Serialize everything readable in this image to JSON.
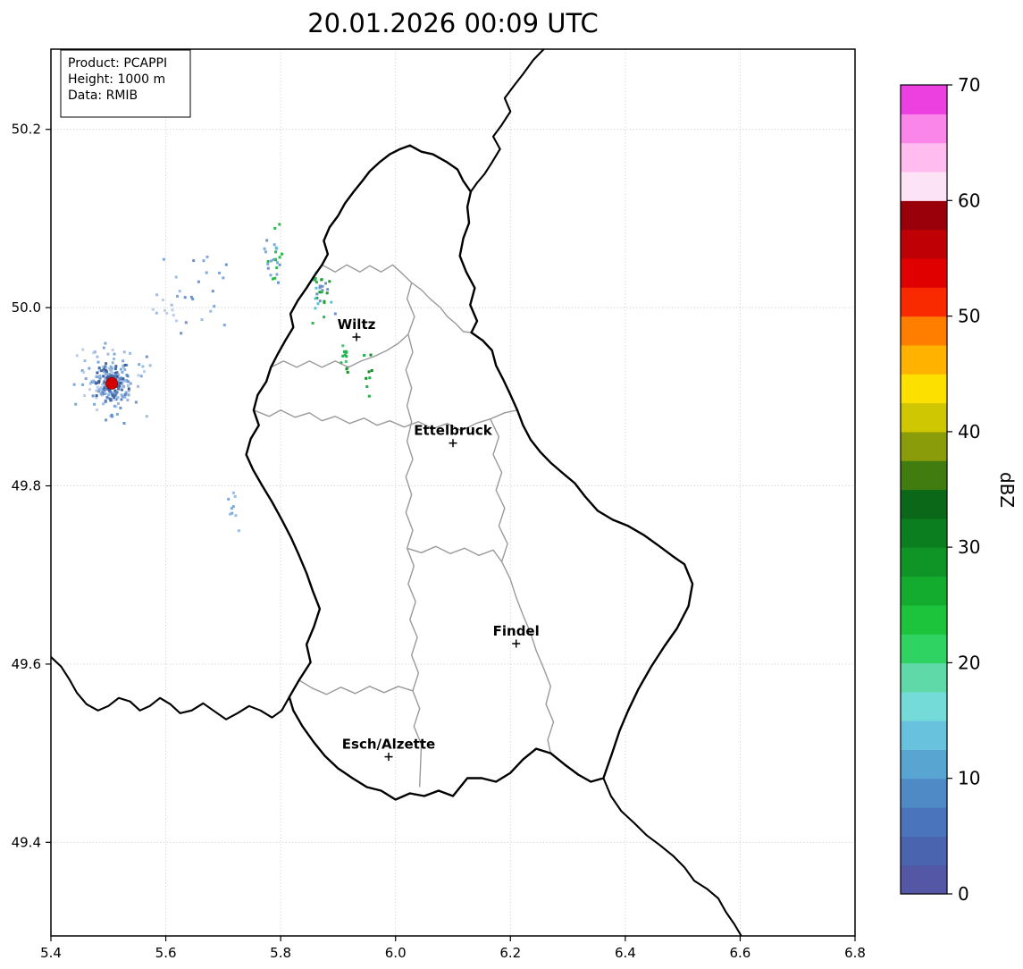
{
  "title": "20.01.2026 00:09 UTC",
  "info_box": {
    "lines": [
      "Product: PCAPPI",
      "Height: 1000 m",
      "Data: RMIB"
    ]
  },
  "axes": {
    "x_ticks": [
      "5.4",
      "5.6",
      "5.8",
      "6.0",
      "6.2",
      "6.4",
      "6.6",
      "6.8"
    ],
    "y_ticks": [
      "49.4",
      "49.6",
      "49.8",
      "50.0",
      "50.2"
    ],
    "lon_range": [
      5.4,
      6.8
    ],
    "lat_range": [
      49.295,
      50.29
    ]
  },
  "colorbar": {
    "label": "dBZ",
    "ticks": [
      0,
      10,
      20,
      30,
      40,
      50,
      60,
      70
    ],
    "min": 0,
    "max": 70,
    "step": 2.5,
    "colors": [
      "#5456a6",
      "#4a64b0",
      "#4a74bc",
      "#4f8ac6",
      "#58a5d2",
      "#68c2de",
      "#74dbd8",
      "#5fd9a8",
      "#2fd362",
      "#1cc43c",
      "#14ac2e",
      "#0f9426",
      "#0b7e1f",
      "#0a6818",
      "#417c10",
      "#8a9c09",
      "#cfc702",
      "#fbe000",
      "#ffb300",
      "#ff7e00",
      "#f92a00",
      "#e00000",
      "#bf0004",
      "#99000a",
      "#fce4f6",
      "#ffbcee",
      "#fb86e9",
      "#ec40e0"
    ]
  },
  "cities": [
    {
      "name": "Wiltz",
      "lon": 5.932,
      "lat": 49.967
    },
    {
      "name": "Ettelbruck",
      "lon": 6.1,
      "lat": 49.848
    },
    {
      "name": "Findel",
      "lon": 6.21,
      "lat": 49.623
    },
    {
      "name": "Esch/Alzette",
      "lon": 5.988,
      "lat": 49.496
    }
  ],
  "radar_site": {
    "lon": 5.506,
    "lat": 49.915,
    "color": "#d40000"
  },
  "chart_data": {
    "type": "heatmap",
    "title": "20.01.2026 00:09 UTC",
    "value_label": "dBZ",
    "value_range": [
      0,
      70
    ],
    "lon_range": [
      5.4,
      6.8
    ],
    "lat_range": [
      49.295,
      50.29
    ],
    "echo_clusters": [
      {
        "seed": 2,
        "lon": 5.506,
        "lat": 49.915,
        "sx": 0.045,
        "sy": 0.03,
        "n": 110,
        "colors": [
          "#9dbce2",
          "#7fa8d8",
          "#6b93cc",
          "#b9cfec"
        ]
      },
      {
        "seed": 1,
        "lon": 5.506,
        "lat": 49.916,
        "sx": 0.02,
        "sy": 0.013,
        "n": 150,
        "colors": [
          "#7fa8d8",
          "#5b84c6",
          "#49699f",
          "#a9c3e6",
          "#3c5e9e",
          "#8fb3dc"
        ]
      },
      {
        "seed": 10,
        "lon": 5.506,
        "lat": 49.916,
        "sx": 0.008,
        "sy": 0.005,
        "n": 60,
        "colors": [
          "#45629f",
          "#54719f",
          "#6e8fc0",
          "#3c5e9e"
        ]
      },
      {
        "seed": 3,
        "lon": 5.787,
        "lat": 50.055,
        "sx": 0.01,
        "sy": 0.022,
        "n": 26,
        "colors": [
          "#6b93cc",
          "#57c0d8",
          "#2db84c",
          "#7fa8d8"
        ]
      },
      {
        "seed": 4,
        "lon": 5.868,
        "lat": 50.012,
        "sx": 0.016,
        "sy": 0.018,
        "n": 30,
        "colors": [
          "#2db84c",
          "#18a030",
          "#57c0d8",
          "#6b93cc"
        ]
      },
      {
        "seed": 5,
        "lon": 5.912,
        "lat": 49.938,
        "sx": 0.005,
        "sy": 0.018,
        "n": 12,
        "colors": [
          "#22b14c",
          "#129426",
          "#4fc470"
        ]
      },
      {
        "seed": 6,
        "lon": 5.952,
        "lat": 49.924,
        "sx": 0.004,
        "sy": 0.014,
        "n": 8,
        "colors": [
          "#22b14c",
          "#0f8c22"
        ]
      },
      {
        "seed": 7,
        "lon": 5.655,
        "lat": 50.02,
        "sx": 0.035,
        "sy": 0.028,
        "n": 22,
        "colors": [
          "#9dbce2",
          "#7fa8d8",
          "#6b93cc"
        ]
      },
      {
        "seed": 8,
        "lon": 5.718,
        "lat": 49.775,
        "sx": 0.008,
        "sy": 0.018,
        "n": 9,
        "colors": [
          "#9dbce2",
          "#7fa8d8"
        ]
      },
      {
        "seed": 9,
        "lon": 5.6,
        "lat": 49.995,
        "sx": 0.02,
        "sy": 0.02,
        "n": 10,
        "colors": [
          "#9dbce2",
          "#b9cfec"
        ]
      }
    ]
  }
}
